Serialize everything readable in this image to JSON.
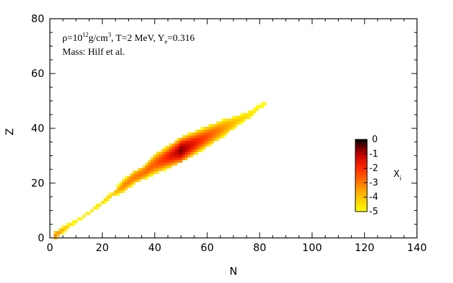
{
  "chart_data": {
    "type": "heatmap",
    "xlabel": "N",
    "ylabel": "Z",
    "xlim": [
      0,
      140
    ],
    "ylim": [
      0,
      80
    ],
    "x_ticks": [
      "0",
      "20",
      "40",
      "60",
      "80",
      "100",
      "120",
      "140"
    ],
    "y_ticks": [
      "0",
      "20",
      "40",
      "60",
      "80"
    ],
    "annotation_line1": {
      "rho": "ρ=10",
      "rho_exp": "12",
      "rho_units": "g/cm",
      "cube": "3",
      "temp": ", T=2 MeV, Y",
      "ye_sub": "e",
      "ye_val": "=0.316"
    },
    "annotation_line2": "Mass: Hilf et al.",
    "colorbar": {
      "label": "X",
      "label_sub": "i",
      "min": -5,
      "max": 0,
      "ticks": [
        "0",
        "-1",
        "-2",
        "-3",
        "-4",
        "-5"
      ],
      "colors": [
        "#ffff00",
        "#ffc400",
        "#ff7a00",
        "#ff2a00",
        "#c00000",
        "#000000"
      ]
    },
    "ridge": {
      "n_center": [
        2,
        5,
        8,
        10,
        13,
        16,
        20,
        24,
        28,
        32,
        36,
        40,
        44,
        48,
        50,
        52,
        56,
        60,
        64,
        68,
        72,
        76,
        80,
        82
      ],
      "z_center": [
        1,
        3,
        5,
        6,
        8,
        10,
        13,
        16,
        19,
        22,
        24,
        27,
        29,
        31,
        32,
        33,
        35,
        37,
        39,
        41,
        43,
        45,
        48,
        49
      ],
      "log_x_peak": [
        -3.2,
        -3.8,
        -4.6,
        -4.8,
        -4.7,
        -4.6,
        -4.5,
        -4.2,
        -3.2,
        -3.0,
        -2.8,
        -2.6,
        -2.0,
        -1.2,
        -0.6,
        -1.0,
        -1.8,
        -2.4,
        -3.0,
        -3.6,
        -4.1,
        -4.5,
        -4.8,
        -4.9
      ],
      "half_width_z": [
        1,
        1,
        1,
        1,
        1,
        1,
        1,
        1,
        2,
        2,
        2,
        3,
        3,
        3,
        3,
        3,
        3,
        3,
        3,
        3,
        2,
        2,
        2,
        1
      ]
    }
  }
}
